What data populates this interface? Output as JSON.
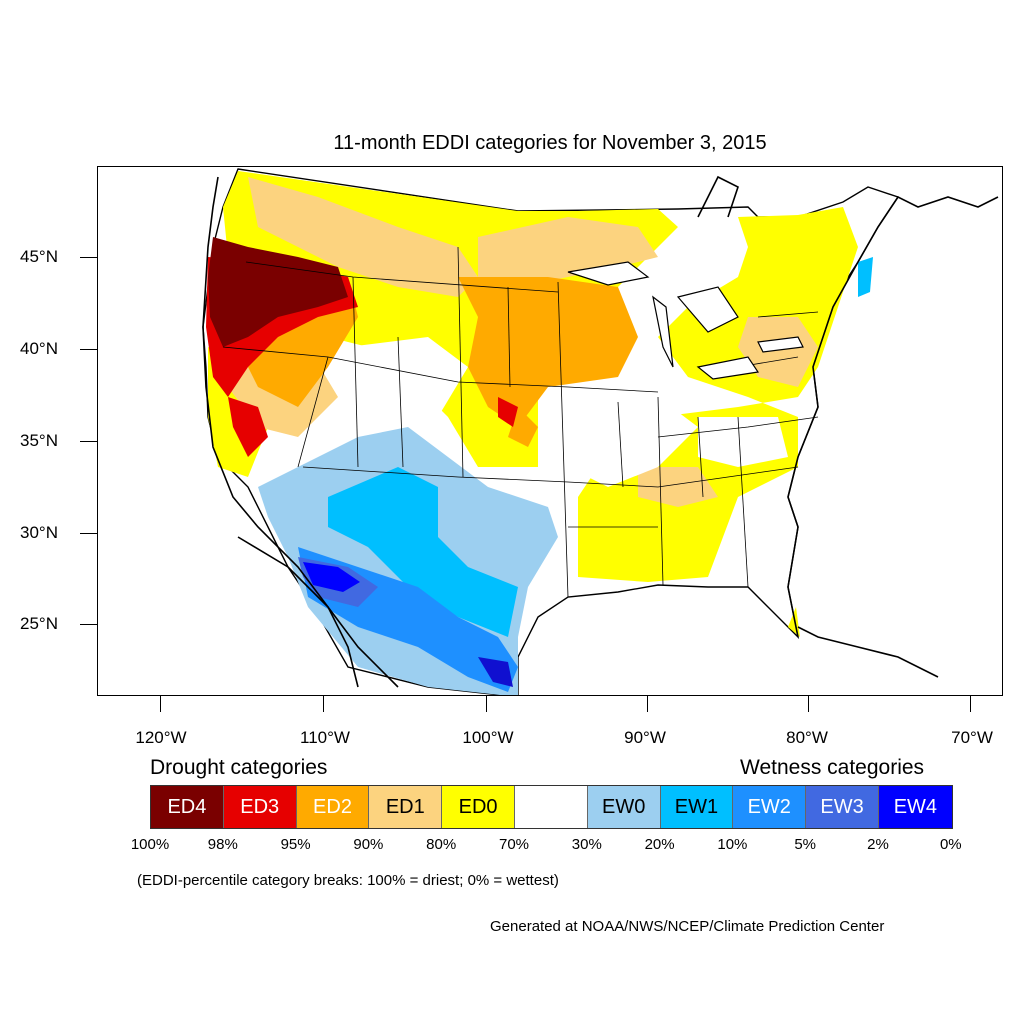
{
  "title": "11-month EDDI categories for November 3, 2015",
  "lat_labels": [
    "45°N",
    "40°N",
    "35°N",
    "30°N",
    "25°N"
  ],
  "lon_labels": [
    "120°W",
    "110°W",
    "100°W",
    "90°W",
    "80°W",
    "70°W"
  ],
  "legend": {
    "drought_heading": "Drought categories",
    "wetness_heading": "Wetness categories",
    "categories": [
      {
        "label": "ED4",
        "color": "#7a0000",
        "text_color": "#ffffff"
      },
      {
        "label": "ED3",
        "color": "#e60000",
        "text_color": "#ffffff"
      },
      {
        "label": "ED2",
        "color": "#ffaa00",
        "text_color": "#ffffff"
      },
      {
        "label": "ED1",
        "color": "#fcd37f",
        "text_color": "#000000"
      },
      {
        "label": "ED0",
        "color": "#ffff00",
        "text_color": "#000000"
      },
      {
        "label": "",
        "color": "#ffffff",
        "text_color": "#000000"
      },
      {
        "label": "EW0",
        "color": "#9ccff0",
        "text_color": "#000000"
      },
      {
        "label": "EW1",
        "color": "#00bfff",
        "text_color": "#000000"
      },
      {
        "label": "EW2",
        "color": "#1e90ff",
        "text_color": "#ffffff"
      },
      {
        "label": "EW3",
        "color": "#4169e1",
        "text_color": "#ffffff"
      },
      {
        "label": "EW4",
        "color": "#0000ff",
        "text_color": "#ffffff"
      }
    ],
    "breaks": [
      "100%",
      "98%",
      "95%",
      "90%",
      "80%",
      "70%",
      "30%",
      "20%",
      "10%",
      "5%",
      "2%",
      "0%"
    ]
  },
  "note": "(EDDI-percentile category breaks: 100% = driest; 0% = wettest)",
  "credit": "Generated at NOAA/NWS/NCEP/Climate Prediction Center"
}
